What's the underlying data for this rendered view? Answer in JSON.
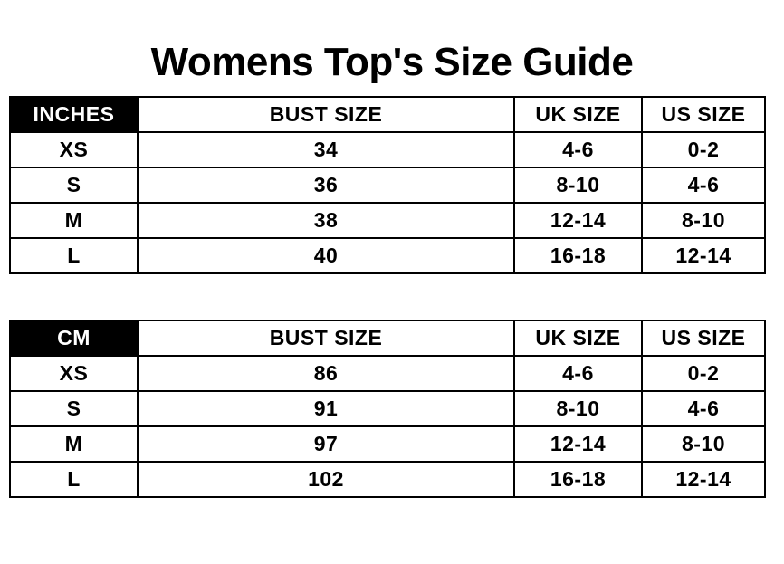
{
  "title": "Womens Top's Size Guide",
  "colors": {
    "background": "#ffffff",
    "text": "#000000",
    "border": "#000000",
    "unit_cell_bg": "#000000",
    "unit_cell_text": "#ffffff"
  },
  "tables": [
    {
      "unit_label": "INCHES",
      "columns": [
        "BUST SIZE",
        "UK SIZE",
        "US SIZE"
      ],
      "rows": [
        {
          "size": "XS",
          "bust": "34",
          "uk": "4-6",
          "us": "0-2"
        },
        {
          "size": "S",
          "bust": "36",
          "uk": "8-10",
          "us": "4-6"
        },
        {
          "size": "M",
          "bust": "38",
          "uk": "12-14",
          "us": "8-10"
        },
        {
          "size": "L",
          "bust": "40",
          "uk": "16-18",
          "us": "12-14"
        }
      ]
    },
    {
      "unit_label": "CM",
      "columns": [
        "BUST SIZE",
        "UK SIZE",
        "US SIZE"
      ],
      "rows": [
        {
          "size": "XS",
          "bust": "86",
          "uk": "4-6",
          "us": "0-2"
        },
        {
          "size": "S",
          "bust": "91",
          "uk": "8-10",
          "us": "4-6"
        },
        {
          "size": "M",
          "bust": "97",
          "uk": "12-14",
          "us": "8-10"
        },
        {
          "size": "L",
          "bust": "102",
          "uk": "16-18",
          "us": "12-14"
        }
      ]
    }
  ]
}
